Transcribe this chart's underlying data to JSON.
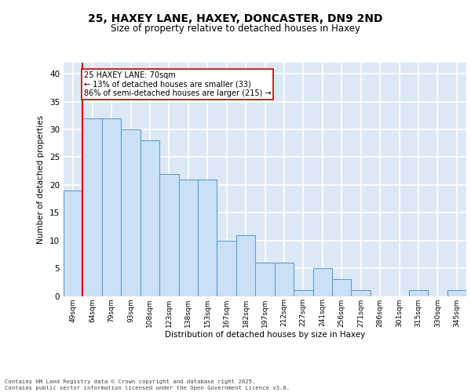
{
  "title_line1": "25, HAXEY LANE, HAXEY, DONCASTER, DN9 2ND",
  "title_line2": "Size of property relative to detached houses in Haxey",
  "xlabel": "Distribution of detached houses by size in Haxey",
  "ylabel": "Number of detached properties",
  "categories": [
    "49sqm",
    "64sqm",
    "79sqm",
    "93sqm",
    "108sqm",
    "123sqm",
    "138sqm",
    "153sqm",
    "167sqm",
    "182sqm",
    "197sqm",
    "212sqm",
    "227sqm",
    "241sqm",
    "256sqm",
    "271sqm",
    "286sqm",
    "301sqm",
    "315sqm",
    "330sqm",
    "345sqm"
  ],
  "values": [
    19,
    32,
    32,
    30,
    28,
    22,
    21,
    21,
    10,
    11,
    6,
    6,
    1,
    5,
    3,
    1,
    0,
    0,
    1,
    0,
    1
  ],
  "bar_color": "#cce0f5",
  "bar_edge_color": "#5a9fd4",
  "background_color": "#dde8f5",
  "grid_color": "#ffffff",
  "annotation_text": "25 HAXEY LANE: 70sqm\n← 13% of detached houses are smaller (33)\n86% of semi-detached houses are larger (215) →",
  "vline_color": "#cc0000",
  "ylim": [
    0,
    42
  ],
  "yticks": [
    0,
    5,
    10,
    15,
    20,
    25,
    30,
    35,
    40
  ],
  "footer_line1": "Contains HM Land Registry data © Crown copyright and database right 2025.",
  "footer_line2": "Contains public sector information licensed under the Open Government Licence v3.0."
}
